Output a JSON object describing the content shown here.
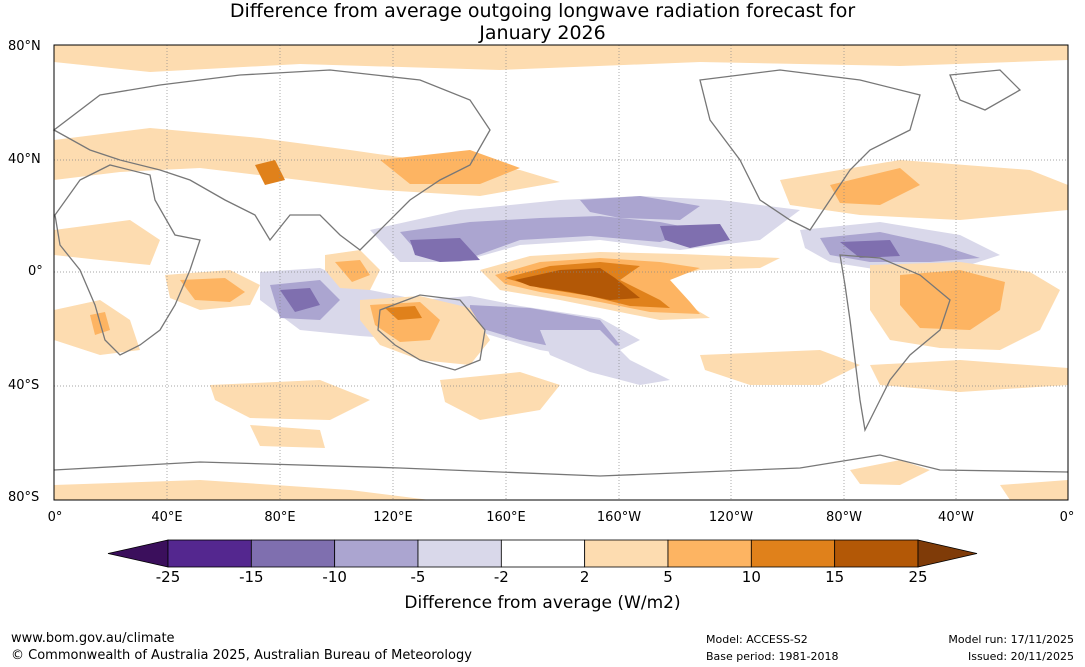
{
  "title_line1": "Difference from average outgoing longwave radiation forecast for",
  "title_line2": "January 2026",
  "lat_labels": [
    "80°N",
    "40°N",
    "0°",
    "40°S",
    "80°S"
  ],
  "lon_labels": [
    "0°",
    "40°E",
    "80°E",
    "120°E",
    "160°E",
    "160°W",
    "120°W",
    "80°W",
    "40°W",
    "0°"
  ],
  "colorbar": {
    "ticks": [
      "-25",
      "-15",
      "-10",
      "-5",
      "-2",
      "2",
      "5",
      "10",
      "15",
      "25"
    ],
    "colors": [
      "#3b0f5c",
      "#54278f",
      "#7f6faf",
      "#aba5d0",
      "#d9d8ea",
      "#ffffff",
      "#fddcb0",
      "#fdb462",
      "#e0811b",
      "#b35806",
      "#7f3b08"
    ],
    "title": "Difference from average (W/m2)"
  },
  "footer": {
    "url": "www.bom.gov.au/climate",
    "copyright": "© Commonwealth of Australia 2025, Australian Bureau of Meteorology",
    "model": "Model: ACCESS-S2",
    "base_period": "Base period: 1981-2018",
    "model_run": "Model run: 17/11/2025",
    "issued": "Issued: 20/11/2025"
  }
}
